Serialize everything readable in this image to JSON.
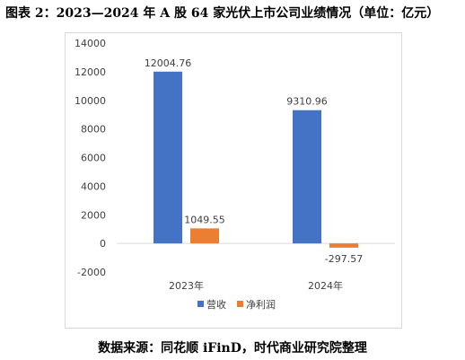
{
  "figure_title": "图表 2：2023—2024 年 A 股 64 家光伏上市公司业绩情况（单位：亿元）",
  "source": "数据来源：同花顺 iFinD，时代商业研究院整理",
  "chart_data": {
    "type": "bar",
    "categories": [
      "2023年",
      "2024年"
    ],
    "series": [
      {
        "name": "营收",
        "values": [
          12004.76,
          9310.96
        ],
        "color": "#4472C4",
        "labels": [
          "12004.76",
          "9310.96"
        ]
      },
      {
        "name": "净利润",
        "values": [
          1049.55,
          -297.57
        ],
        "color": "#ED7D31",
        "labels": [
          "1049.55",
          "-297.57"
        ]
      }
    ],
    "ylim": [
      -2000,
      14000
    ],
    "yticks": [
      "-2000",
      "0",
      "2000",
      "4000",
      "6000",
      "8000",
      "10000",
      "12000",
      "14000"
    ],
    "grid": false,
    "legend": "bottom"
  }
}
